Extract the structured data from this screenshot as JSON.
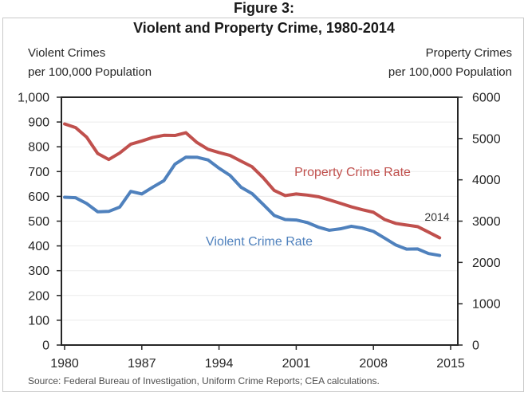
{
  "figure_label": "Figure 3:",
  "title": "Violent and Property Crime, 1980-2014",
  "left_axis_header": [
    "Violent Crimes",
    "per 100,000 Population"
  ],
  "right_axis_header": [
    "Property Crimes",
    "per 100,000 Population"
  ],
  "annotation_2014": "2014",
  "source": "Source: Federal Bureau of Investigation, Uniform Crime Reports; CEA calculations.",
  "colors": {
    "violent_line": "#4F81BD",
    "property_line": "#C0504D",
    "axis_frame": "#262626",
    "gridline": "#EBEBEB",
    "figure_border": "#c9c9c9"
  },
  "chart_data": {
    "type": "line",
    "title": "Violent and Property Crime, 1980-2014",
    "grid": true,
    "x_axis": {
      "min": 1980,
      "max": 2015
    },
    "x_ticks": [
      1980,
      1987,
      1994,
      2001,
      2008,
      2015
    ],
    "x": [
      1980,
      1981,
      1982,
      1983,
      1984,
      1985,
      1986,
      1987,
      1988,
      1989,
      1990,
      1991,
      1992,
      1993,
      1994,
      1995,
      1996,
      1997,
      1998,
      1999,
      2000,
      2001,
      2002,
      2003,
      2004,
      2005,
      2006,
      2007,
      2008,
      2009,
      2010,
      2011,
      2012,
      2013,
      2014
    ],
    "left_axis": {
      "title": "Violent Crimes per 100,000 Population",
      "min": 0,
      "max": 1000,
      "step": 100,
      "labels": [
        "0",
        "100",
        "200",
        "300",
        "400",
        "500",
        "600",
        "700",
        "800",
        "900",
        "1,000"
      ]
    },
    "right_axis": {
      "title": "Property Crimes per 100,000 Population",
      "min": 0,
      "max": 6000,
      "step": 1000,
      "labels": [
        "0",
        "1000",
        "2000",
        "3000",
        "4000",
        "5000",
        "6000"
      ]
    },
    "series": [
      {
        "name": "Violent Crime Rate",
        "axis": "left",
        "color": "#4F81BD",
        "values": [
          596.6,
          594.3,
          571.1,
          537.7,
          539.2,
          556.6,
          620.1,
          609.7,
          637.2,
          663.1,
          729.6,
          758.2,
          757.7,
          747.1,
          713.6,
          684.5,
          636.6,
          611.0,
          567.6,
          523.0,
          506.5,
          504.5,
          494.4,
          475.8,
          463.2,
          469.0,
          479.3,
          471.8,
          458.6,
          431.9,
          404.5,
          387.1,
          387.8,
          369.1,
          361.6
        ]
      },
      {
        "name": "Property Crime Rate",
        "axis": "right",
        "color": "#C0504D",
        "values": [
          5353.3,
          5263.9,
          5032.5,
          4637.4,
          4492.1,
          4650.5,
          4862.6,
          4940.3,
          5027.1,
          5077.9,
          5073.1,
          5140.2,
          4903.7,
          4740.0,
          4660.2,
          4590.5,
          4451.0,
          4316.3,
          4052.5,
          3743.6,
          3618.3,
          3658.1,
          3630.6,
          3591.2,
          3514.1,
          3431.5,
          3346.6,
          3276.4,
          3214.6,
          3041.3,
          2945.9,
          2905.4,
          2868.0,
          2733.6,
          2596.1
        ]
      }
    ]
  }
}
